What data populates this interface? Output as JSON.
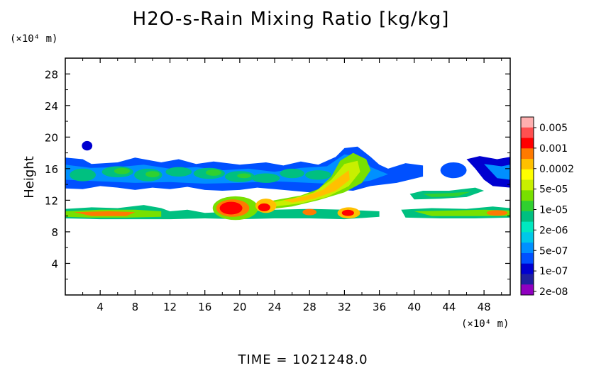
{
  "chart_data": {
    "type": "heatmap",
    "title": "H2O-s-Rain Mixing Ratio [kg/kg]",
    "ylabel": "Height",
    "y_unit": "(×10⁴ m)",
    "x_unit": "(×10⁴ m)",
    "xlim": [
      0,
      51
    ],
    "ylim": [
      0,
      30
    ],
    "x_ticks": [
      "4",
      "8",
      "12",
      "16",
      "20",
      "24",
      "28",
      "32",
      "36",
      "40",
      "44",
      "48"
    ],
    "y_ticks": [
      "4",
      "8",
      "12",
      "16",
      "20",
      "24",
      "28"
    ],
    "colorbar": {
      "labels": [
        "0.005",
        "0.001",
        "0.0002",
        "5e-05",
        "1e-05",
        "2e-06",
        "5e-07",
        "1e-07",
        "2e-08"
      ],
      "colors_top_to_bottom": [
        "#ffb0b0",
        "#ff5050",
        "#ff0000",
        "#ff7a00",
        "#ffc000",
        "#ffff00",
        "#c8f000",
        "#78e000",
        "#30d030",
        "#00c080",
        "#00e8c0",
        "#00c8e8",
        "#0090ff",
        "#0050ff",
        "#0000d0",
        "#2020a0",
        "#9000c0"
      ]
    },
    "fields": [
      {
        "name": "upper anvil band",
        "x": [
          0,
          51
        ],
        "y": [
          13.5,
          17.5
        ],
        "level": "1e-07 to 5e-05"
      },
      {
        "name": "lower rain layer",
        "x": [
          0,
          51
        ],
        "y": [
          9.5,
          11.0
        ],
        "level": "2e-06 to 0.001"
      },
      {
        "name": "convective cell A",
        "x": [
          17,
          22
        ],
        "y": [
          9.5,
          12.5
        ],
        "level": "0.001"
      },
      {
        "name": "convective plume",
        "x": [
          22,
          36
        ],
        "y": [
          11.0,
          19.0
        ],
        "level": "1e-05 to 0.0002"
      },
      {
        "name": "convective cell B",
        "x": [
          31,
          34
        ],
        "y": [
          9.5,
          11.0
        ],
        "level": "0.001"
      }
    ]
  },
  "footer": {
    "time_text": "TIME  =  1021248.0"
  }
}
